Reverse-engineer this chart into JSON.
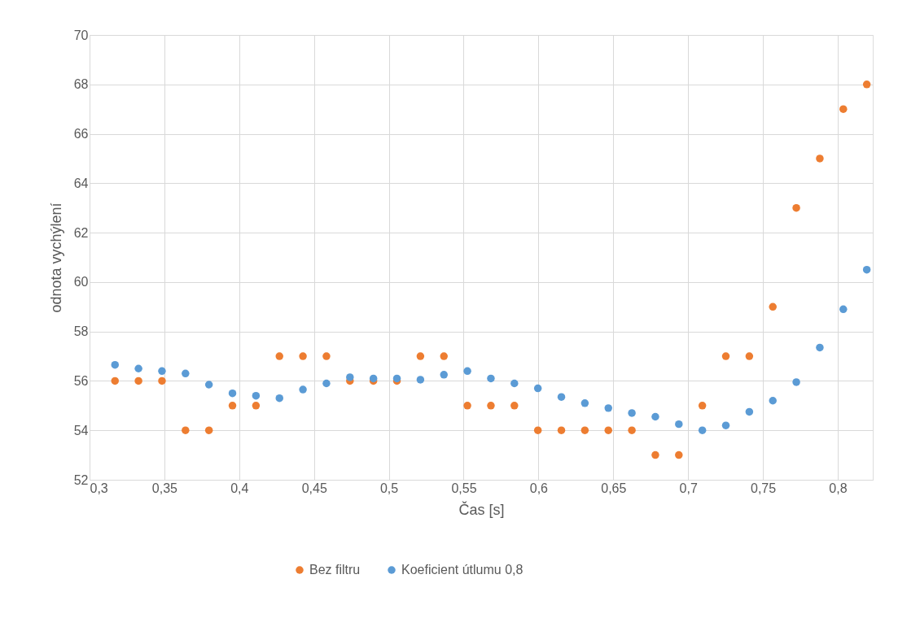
{
  "chart_data": {
    "type": "scatter",
    "xlabel": "Čas [s]",
    "ylabel": "odnota vychýlení",
    "x": [
      0.317,
      0.3327,
      0.3484,
      0.3641,
      0.3798,
      0.3955,
      0.4112,
      0.4269,
      0.4426,
      0.4583,
      0.474,
      0.4897,
      0.5054,
      0.5211,
      0.5368,
      0.5525,
      0.5682,
      0.5839,
      0.5996,
      0.6153,
      0.631,
      0.6467,
      0.6624,
      0.6781,
      0.6938,
      0.7095,
      0.7252,
      0.7409,
      0.7566,
      0.7723,
      0.788,
      0.8037,
      0.8194
    ],
    "series": [
      {
        "name": "Bez filtru",
        "color": "#ed7d31",
        "values": [
          56,
          56,
          56,
          54,
          54,
          55,
          55,
          57,
          57,
          57,
          56,
          56,
          56,
          57,
          57,
          55,
          55,
          55,
          54,
          54,
          54,
          54,
          54,
          53,
          53,
          55,
          57,
          57,
          59,
          63,
          65,
          67,
          68
        ]
      },
      {
        "name": "Koeficient útlumu 0,8",
        "color": "#5b9bd5",
        "values": [
          56.65,
          56.5,
          56.4,
          56.3,
          55.85,
          55.5,
          55.4,
          55.3,
          55.65,
          55.9,
          56.15,
          56.1,
          56.1,
          56.05,
          56.25,
          56.4,
          56.1,
          55.9,
          55.7,
          55.35,
          55.1,
          54.9,
          54.7,
          54.55,
          54.25,
          54.0,
          54.2,
          54.75,
          55.2,
          55.95,
          57.35,
          58.9,
          60.5
        ]
      }
    ],
    "xlim": [
      0.3,
      0.8234
    ],
    "xticks": [
      {
        "value": 0.3,
        "label": "0,3"
      },
      {
        "value": 0.35,
        "label": "0,35"
      },
      {
        "value": 0.4,
        "label": "0,4"
      },
      {
        "value": 0.45,
        "label": "0,45"
      },
      {
        "value": 0.5,
        "label": "0,5"
      },
      {
        "value": 0.55,
        "label": "0,55"
      },
      {
        "value": 0.6,
        "label": "0,6"
      },
      {
        "value": 0.65,
        "label": "0,65"
      },
      {
        "value": 0.7,
        "label": "0,7"
      },
      {
        "value": 0.75,
        "label": "0,75"
      },
      {
        "value": 0.8,
        "label": "0,8"
      }
    ],
    "ylim": [
      52,
      70
    ],
    "yticks": [
      52,
      54,
      56,
      58,
      60,
      62,
      64,
      66,
      68,
      70
    ],
    "grid": true,
    "legend": "bottom",
    "marker": "circle"
  }
}
